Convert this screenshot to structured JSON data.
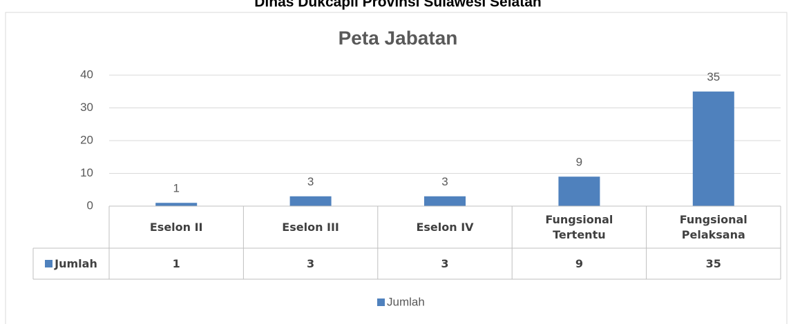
{
  "heading": "Dinas Dukcapil Provinsi Sulawesi Selatan",
  "chart_data": {
    "type": "bar",
    "title": "Peta Jabatan",
    "categories": [
      "Eselon II",
      "Eselon III",
      "Eselon IV",
      "Fungsional Tertentu",
      "Fungsional Pelaksana"
    ],
    "series": [
      {
        "name": "Jumlah",
        "color": "#4f81bd",
        "values": [
          1,
          3,
          3,
          9,
          35
        ]
      }
    ],
    "ylim": [
      0,
      40
    ],
    "yticks": [
      0,
      10,
      20,
      30,
      40
    ],
    "grid": true,
    "legend": "bottom",
    "data_table": true
  }
}
